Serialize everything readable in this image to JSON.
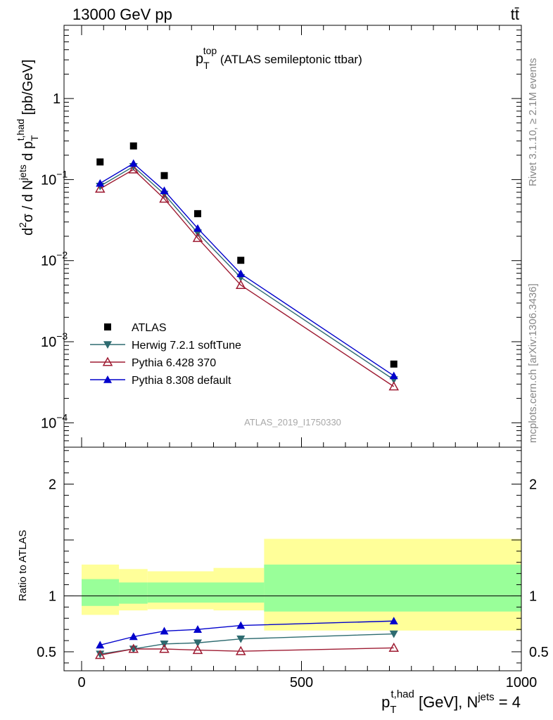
{
  "header": {
    "energy_label": "13000 GeV pp",
    "process_label": "tt̄"
  },
  "side_labels": {
    "rivet": "Rivet 3.1.10, ≥ 2.1M events",
    "mcplots": "mcplots.cern.ch [arXiv:1306.3436]"
  },
  "chart_data": [
    {
      "type": "scatter",
      "panel": "main",
      "title": "p_T^top (ATLAS semileptonic ttbar)",
      "title_main": "p",
      "title_sub": "T",
      "title_sup": "top",
      "title_rest": " (ATLAS semileptonic ttbar)",
      "watermark": "ATLAS_2019_I1750330",
      "ylabel": "d²σ / d N^jets d p_T^t,had [pb/GeV]",
      "yscale": "log",
      "ylim": [
        5e-05,
        8
      ],
      "xlim": [
        -40,
        1000
      ],
      "ytick_labels": [
        {
          "value": 0.0001,
          "base": "10",
          "exp": "−4"
        },
        {
          "value": 0.001,
          "base": "10",
          "exp": "−3"
        },
        {
          "value": 0.01,
          "base": "10",
          "exp": "−2"
        },
        {
          "value": 0.1,
          "base": "10",
          "exp": "−1"
        },
        {
          "value": 1,
          "base": "1",
          "exp": ""
        }
      ],
      "legend_position": "lower-left",
      "series": [
        {
          "name": "ATLAS",
          "marker": "square",
          "color": "#000000",
          "x": [
            42,
            118,
            188,
            264,
            362,
            710
          ],
          "y": [
            0.165,
            0.26,
            0.112,
            0.038,
            0.0101,
            0.00053
          ]
        },
        {
          "name": "Herwig 7.2.1 softTune",
          "marker": "triangle-down",
          "color": "#2e6b70",
          "x": [
            42,
            118,
            188,
            264,
            362,
            710
          ],
          "y": [
            0.083,
            0.145,
            0.066,
            0.022,
            0.0062,
            0.00034
          ]
        },
        {
          "name": "Pythia 6.428 370",
          "marker": "triangle-up-open",
          "color": "#9e1b32",
          "x": [
            42,
            118,
            188,
            264,
            362,
            710
          ],
          "y": [
            0.077,
            0.133,
            0.058,
            0.019,
            0.005,
            0.00028
          ]
        },
        {
          "name": "Pythia 8.308 default",
          "marker": "triangle-up",
          "color": "#0000cc",
          "x": [
            42,
            118,
            188,
            264,
            362,
            710
          ],
          "y": [
            0.09,
            0.158,
            0.073,
            0.025,
            0.0069,
            0.00038
          ]
        }
      ]
    },
    {
      "type": "line",
      "panel": "ratio",
      "ylabel": "Ratio to ATLAS",
      "ylim": [
        0.33,
        2.33
      ],
      "xlim": [
        -40,
        1000
      ],
      "xlabel": "p_T^t,had [GeV], N^jets = 4",
      "xlabel_p": "p",
      "xlabel_sub": "T",
      "xlabel_sup": "t,had",
      "xlabel_mid": " [GeV], N",
      "xlabel_sup2": "jets",
      "xlabel_end": " = 4",
      "xticks": [
        0,
        500,
        1000
      ],
      "xtick_labels": [
        "0",
        "500",
        "1000"
      ],
      "yticks": [
        0.5,
        1,
        2
      ],
      "ytick_labels": [
        "0.5",
        "1",
        "2"
      ],
      "bands": [
        {
          "x0": 0,
          "x1": 85,
          "inner": [
            0.91,
            1.15
          ],
          "outer": [
            0.83,
            1.28
          ]
        },
        {
          "x0": 85,
          "x1": 150,
          "inner": [
            0.93,
            1.12
          ],
          "outer": [
            0.87,
            1.24
          ]
        },
        {
          "x0": 150,
          "x1": 300,
          "inner": [
            0.94,
            1.12
          ],
          "outer": [
            0.88,
            1.22
          ]
        },
        {
          "x0": 300,
          "x1": 415,
          "inner": [
            0.94,
            1.12
          ],
          "outer": [
            0.87,
            1.25
          ]
        },
        {
          "x0": 415,
          "x1": 1000,
          "inner": [
            0.86,
            1.28
          ],
          "outer": [
            0.69,
            1.51
          ]
        }
      ],
      "series": [
        {
          "name": "Herwig 7.2.1 softTune",
          "marker": "triangle-down",
          "color": "#2e6b70",
          "x": [
            42,
            118,
            188,
            264,
            362,
            710
          ],
          "y": [
            0.48,
            0.525,
            0.57,
            0.58,
            0.615,
            0.66
          ]
        },
        {
          "name": "Pythia 6.428 370",
          "marker": "triangle-up-open",
          "color": "#9e1b32",
          "x": [
            42,
            118,
            188,
            264,
            362,
            710
          ],
          "y": [
            0.47,
            0.525,
            0.525,
            0.515,
            0.505,
            0.535
          ]
        },
        {
          "name": "Pythia 8.308 default",
          "marker": "triangle-up",
          "color": "#0000cc",
          "x": [
            42,
            118,
            188,
            264,
            362,
            710
          ],
          "y": [
            0.56,
            0.635,
            0.685,
            0.7,
            0.735,
            0.775
          ]
        }
      ]
    }
  ]
}
